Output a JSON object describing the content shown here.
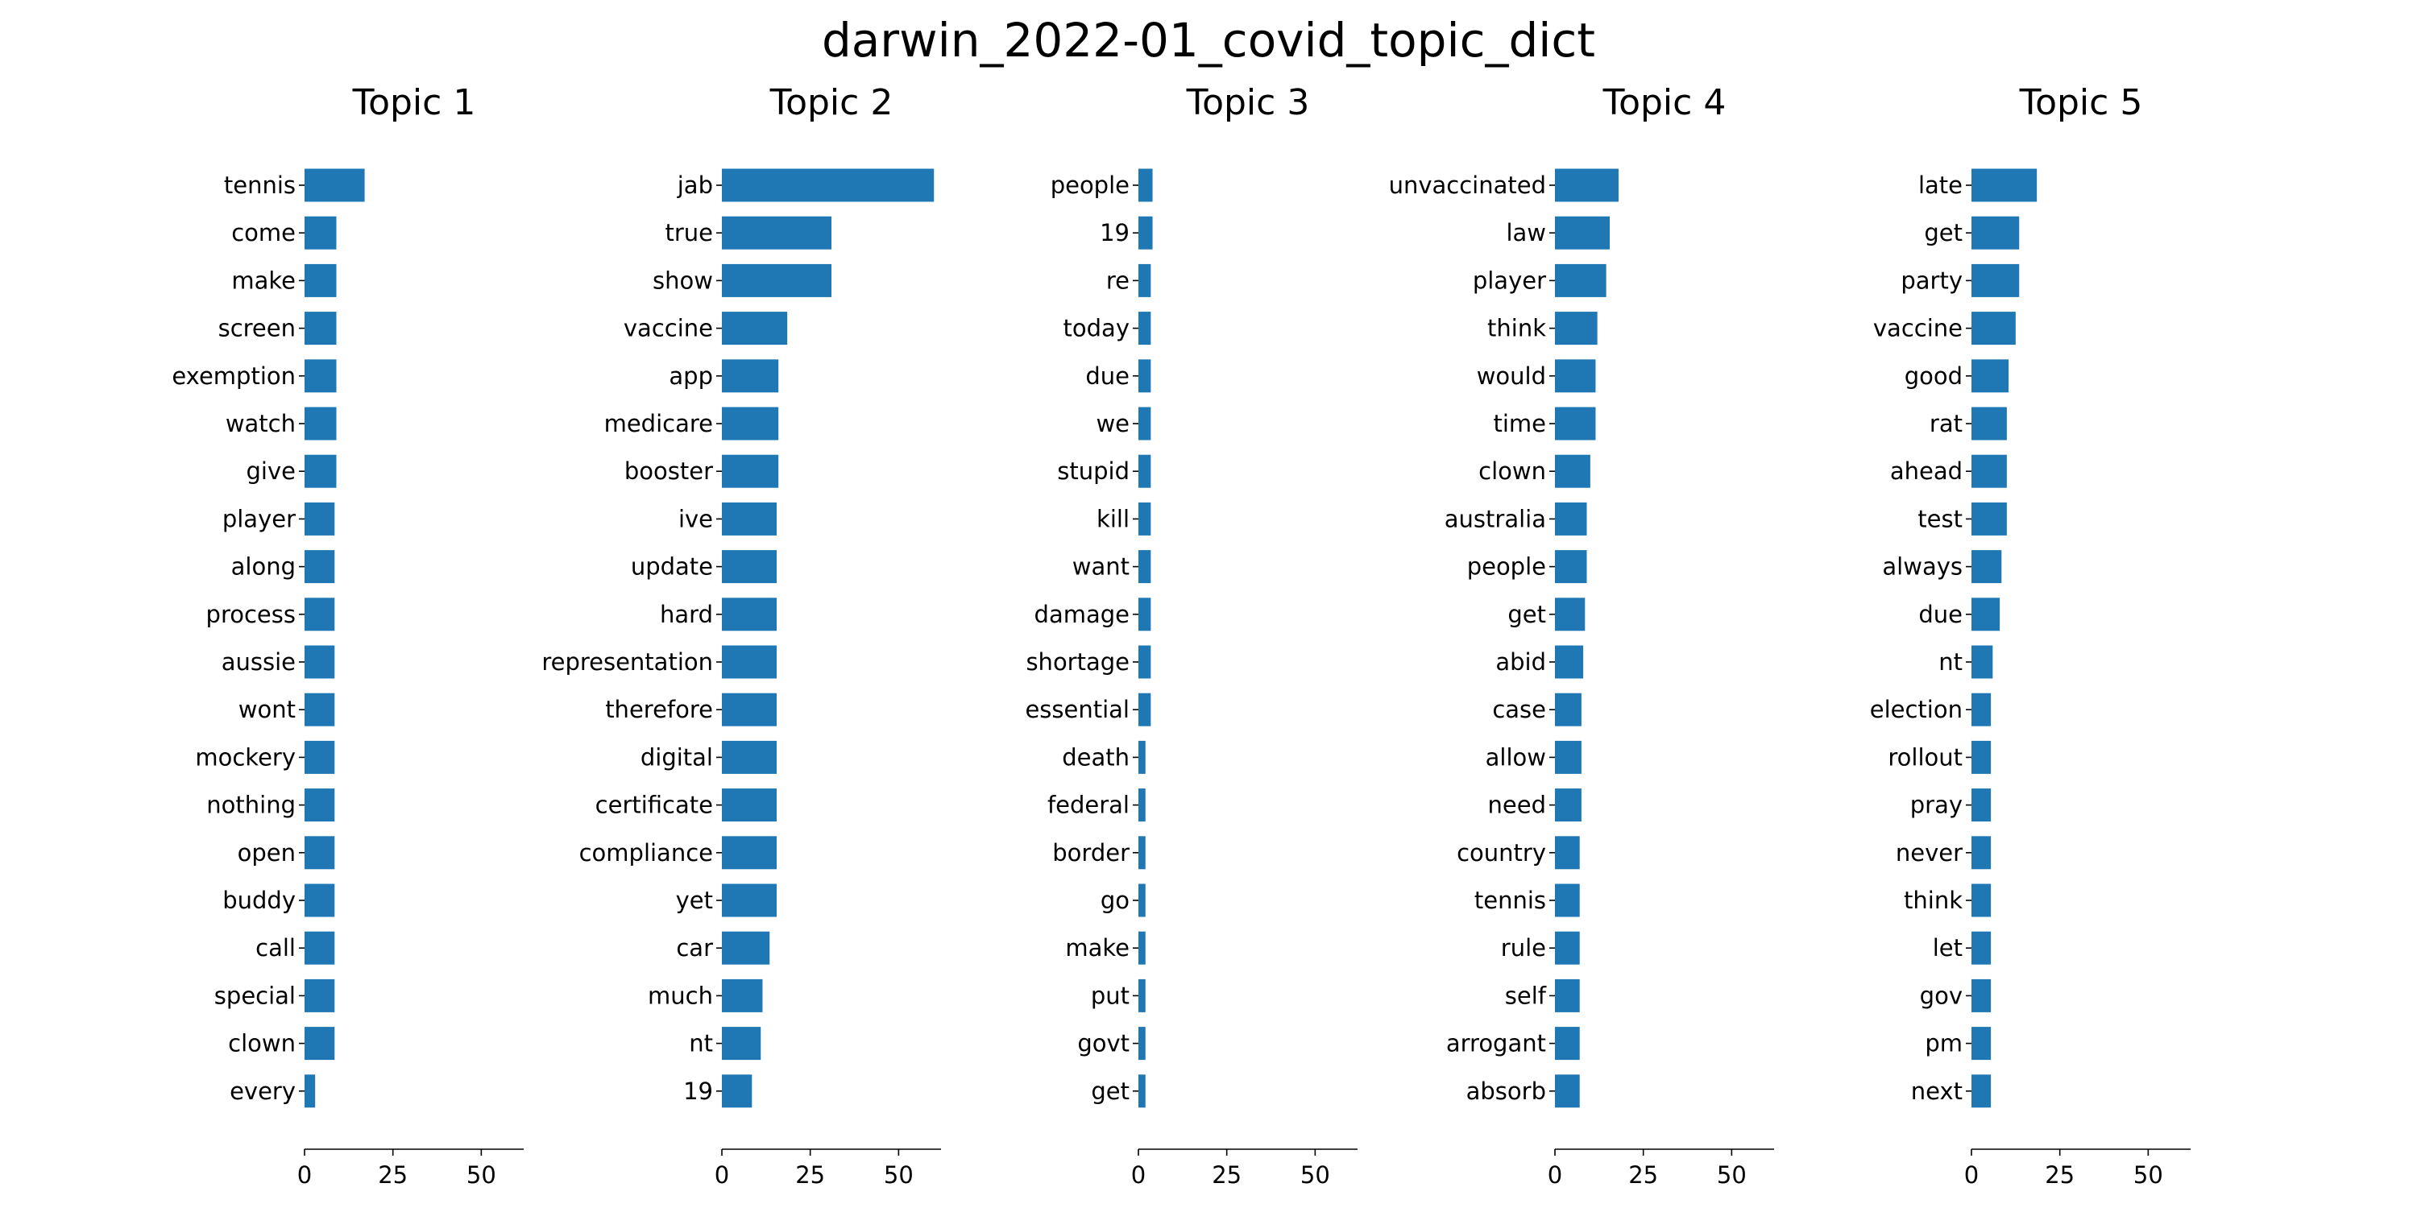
{
  "title": "darwin_2022-01_covid_topic_dict",
  "colors": {
    "bar": "#1f77b4",
    "axis": "#000000"
  },
  "chart_data": [
    {
      "type": "bar",
      "orientation": "horizontal",
      "title": "Topic 1",
      "categories": [
        "tennis",
        "come",
        "make",
        "screen",
        "exemption",
        "watch",
        "give",
        "player",
        "along",
        "process",
        "aussie",
        "wont",
        "mockery",
        "nothing",
        "open",
        "buddy",
        "call",
        "special",
        "clown",
        "every"
      ],
      "values": [
        17,
        9,
        9,
        9,
        9,
        9,
        9,
        8.5,
        8.5,
        8.5,
        8.5,
        8.5,
        8.5,
        8.5,
        8.5,
        8.5,
        8.5,
        8.5,
        8.5,
        3
      ],
      "xlim": [
        0,
        62
      ],
      "xticks": [
        0,
        25,
        50
      ]
    },
    {
      "type": "bar",
      "orientation": "horizontal",
      "title": "Topic 2",
      "categories": [
        "jab",
        "true",
        "show",
        "vaccine",
        "app",
        "medicare",
        "booster",
        "ive",
        "update",
        "hard",
        "representation",
        "therefore",
        "digital",
        "certificate",
        "compliance",
        "yet",
        "car",
        "much",
        "nt",
        "19"
      ],
      "values": [
        60,
        31,
        31,
        18.5,
        16,
        16,
        16,
        15.5,
        15.5,
        15.5,
        15.5,
        15.5,
        15.5,
        15.5,
        15.5,
        15.5,
        13.5,
        11.5,
        11,
        8.5
      ],
      "xlim": [
        0,
        62
      ],
      "xticks": [
        0,
        25,
        50
      ]
    },
    {
      "type": "bar",
      "orientation": "horizontal",
      "title": "Topic 3",
      "categories": [
        "people",
        "19",
        "re",
        "today",
        "due",
        "we",
        "stupid",
        "kill",
        "want",
        "damage",
        "shortage",
        "essential",
        "death",
        "federal",
        "border",
        "go",
        "make",
        "put",
        "govt",
        "get"
      ],
      "values": [
        4,
        4,
        3.5,
        3.5,
        3.5,
        3.5,
        3.5,
        3.5,
        3.5,
        3.5,
        3.5,
        3.5,
        2,
        2,
        2,
        2,
        2,
        2,
        2,
        2
      ],
      "xlim": [
        0,
        62
      ],
      "xticks": [
        0,
        25,
        50
      ]
    },
    {
      "type": "bar",
      "orientation": "horizontal",
      "title": "Topic 4",
      "categories": [
        "unvaccinated",
        "law",
        "player",
        "think",
        "would",
        "time",
        "clown",
        "australia",
        "people",
        "get",
        "abid",
        "case",
        "allow",
        "need",
        "country",
        "tennis",
        "rule",
        "self",
        "arrogant",
        "absorb"
      ],
      "values": [
        18,
        15.5,
        14.5,
        12,
        11.5,
        11.5,
        10,
        9,
        9,
        8.5,
        8,
        7.5,
        7.5,
        7.5,
        7,
        7,
        7,
        7,
        7,
        7
      ],
      "xlim": [
        0,
        62
      ],
      "xticks": [
        0,
        25,
        50
      ]
    },
    {
      "type": "bar",
      "orientation": "horizontal",
      "title": "Topic 5",
      "categories": [
        "late",
        "get",
        "party",
        "vaccine",
        "good",
        "rat",
        "ahead",
        "test",
        "always",
        "due",
        "nt",
        "election",
        "rollout",
        "pray",
        "never",
        "think",
        "let",
        "gov",
        "pm",
        "next"
      ],
      "values": [
        18.5,
        13.5,
        13.5,
        12.5,
        10.5,
        10,
        10,
        10,
        8.5,
        8,
        6,
        5.5,
        5.5,
        5.5,
        5.5,
        5.5,
        5.5,
        5.5,
        5.5,
        5.5
      ],
      "xlim": [
        0,
        62
      ],
      "xticks": [
        0,
        25,
        50
      ]
    }
  ]
}
